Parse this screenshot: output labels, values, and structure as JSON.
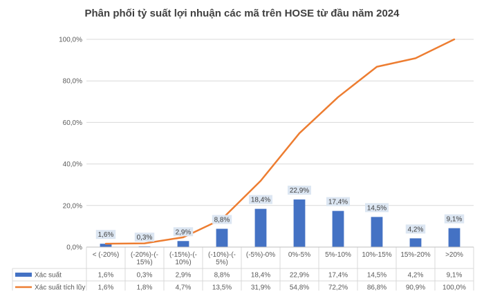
{
  "chart_data": {
    "type": "bar",
    "title": "Phân phối tỷ suất lợi nhuận các mã trên HOSE từ đầu năm 2024",
    "categories": [
      [
        "< (-20%)"
      ],
      [
        "(-20%)-(-",
        "15%)"
      ],
      [
        "(-15%)-(-",
        "10%)"
      ],
      [
        "(-10%)-(-",
        "5%)"
      ],
      [
        "(-5%)-0%"
      ],
      [
        "0%-5%"
      ],
      [
        "5%-10%"
      ],
      [
        "10%-15%"
      ],
      [
        "15%-20%"
      ],
      [
        ">20%"
      ]
    ],
    "series": [
      {
        "name": "Xác suất",
        "type": "bar",
        "color": "#4472C4",
        "values": [
          1.6,
          0.3,
          2.9,
          8.8,
          18.4,
          22.9,
          17.4,
          14.5,
          4.2,
          9.1
        ],
        "labels": [
          "1,6%",
          "0,3%",
          "2,9%",
          "8,8%",
          "18,4%",
          "22,9%",
          "17,4%",
          "14,5%",
          "4,2%",
          "9,1%"
        ]
      },
      {
        "name": "Xác suất tích lũy",
        "type": "line",
        "color": "#ED7D31",
        "values": [
          1.6,
          1.8,
          4.7,
          13.5,
          31.9,
          54.8,
          72.2,
          86.8,
          90.9,
          100.0
        ],
        "labels": [
          "1,6%",
          "1,8%",
          "4,7%",
          "13,5%",
          "31,9%",
          "54,8%",
          "72,2%",
          "86,8%",
          "90,9%",
          "100,0%"
        ]
      }
    ],
    "y_ticks": [
      "0,0%",
      "20,0%",
      "40,0%",
      "60,0%",
      "80,0%",
      "100,0%"
    ],
    "ylim": [
      0,
      100
    ],
    "grid": true,
    "legend": "data-table"
  }
}
